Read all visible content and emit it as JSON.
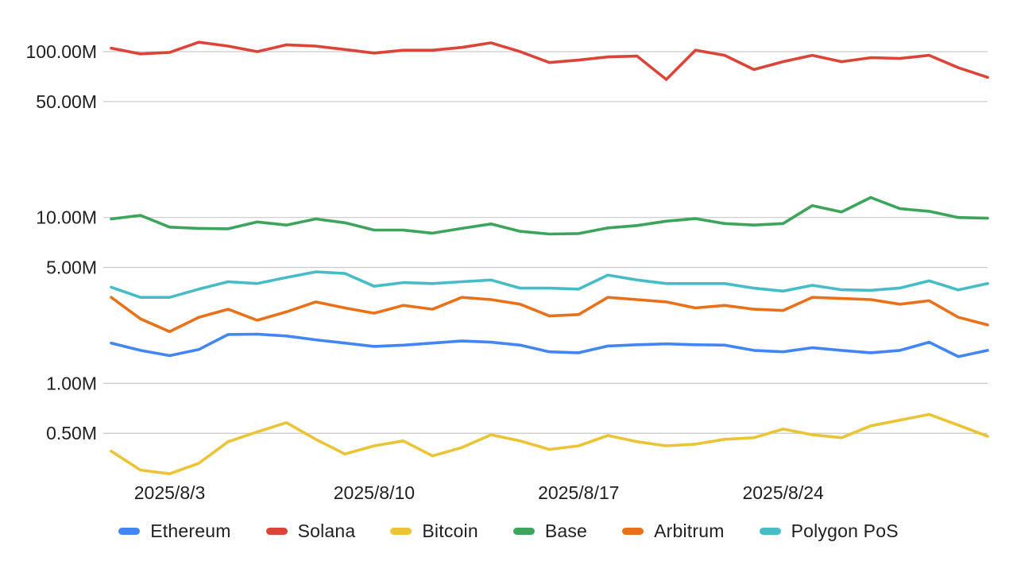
{
  "chart_data": {
    "type": "line",
    "title": "",
    "xlabel": "",
    "ylabel": "",
    "y_scale": "log",
    "y_unit": "M",
    "grid": "horizontal-only",
    "legend_position": "bottom",
    "ylim_m": [
      0.26,
      145
    ],
    "x": [
      "2025/8/1",
      "2025/8/2",
      "2025/8/3",
      "2025/8/4",
      "2025/8/5",
      "2025/8/6",
      "2025/8/7",
      "2025/8/8",
      "2025/8/9",
      "2025/8/10",
      "2025/8/11",
      "2025/8/12",
      "2025/8/13",
      "2025/8/14",
      "2025/8/15",
      "2025/8/16",
      "2025/8/17",
      "2025/8/18",
      "2025/8/19",
      "2025/8/20",
      "2025/8/21",
      "2025/8/22",
      "2025/8/23",
      "2025/8/24",
      "2025/8/25",
      "2025/8/26",
      "2025/8/27",
      "2025/8/28",
      "2025/8/29",
      "2025/8/30",
      "2025/8/31"
    ],
    "x_tick_indices": [
      2,
      9,
      16,
      23
    ],
    "x_tick_labels": [
      "2025/8/3",
      "2025/8/10",
      "2025/8/17",
      "2025/8/24"
    ],
    "y_ticks": [
      {
        "value": 100,
        "label": "100.00M"
      },
      {
        "value": 50,
        "label": "50.00M"
      },
      {
        "value": 10,
        "label": "10.00M"
      },
      {
        "value": 5,
        "label": "5.00M"
      },
      {
        "value": 1,
        "label": "1.00M"
      },
      {
        "value": 0.5,
        "label": "0.50M"
      }
    ],
    "series": [
      {
        "name": "Ethereum",
        "color": "#4285f4",
        "values": [
          1.75,
          1.58,
          1.47,
          1.6,
          1.97,
          1.98,
          1.93,
          1.83,
          1.75,
          1.67,
          1.7,
          1.75,
          1.8,
          1.77,
          1.7,
          1.55,
          1.53,
          1.68,
          1.71,
          1.73,
          1.71,
          1.7,
          1.58,
          1.55,
          1.64,
          1.58,
          1.53,
          1.58,
          1.77,
          1.45,
          1.58
        ]
      },
      {
        "name": "Solana",
        "color": "#db4437",
        "values": [
          105,
          97,
          99,
          114,
          108,
          100,
          110,
          108,
          103,
          98,
          102,
          102,
          106,
          113,
          100,
          86,
          89,
          93,
          94,
          68,
          102,
          95,
          78,
          87,
          95,
          87,
          92,
          91,
          95,
          80,
          70
        ]
      },
      {
        "name": "Bitcoin",
        "color": "#eac435",
        "values": [
          0.39,
          0.3,
          0.285,
          0.33,
          0.445,
          0.51,
          0.58,
          0.46,
          0.375,
          0.42,
          0.45,
          0.365,
          0.41,
          0.49,
          0.45,
          0.4,
          0.42,
          0.485,
          0.445,
          0.42,
          0.43,
          0.46,
          0.47,
          0.53,
          0.49,
          0.47,
          0.555,
          0.6,
          0.65,
          0.56,
          0.48
        ]
      },
      {
        "name": "Base",
        "color": "#3da45c",
        "values": [
          9.8,
          10.3,
          8.75,
          8.6,
          8.55,
          9.4,
          9.0,
          9.8,
          9.3,
          8.4,
          8.4,
          8.05,
          8.6,
          9.15,
          8.25,
          7.95,
          8.0,
          8.65,
          8.95,
          9.5,
          9.85,
          9.2,
          9.0,
          9.2,
          11.8,
          10.8,
          13.2,
          11.3,
          10.9,
          10.0,
          9.9
        ]
      },
      {
        "name": "Arbitrum",
        "color": "#e8711a",
        "values": [
          3.3,
          2.45,
          2.05,
          2.5,
          2.8,
          2.4,
          2.7,
          3.1,
          2.85,
          2.65,
          2.95,
          2.8,
          3.3,
          3.2,
          3.0,
          2.55,
          2.6,
          3.3,
          3.2,
          3.1,
          2.85,
          2.95,
          2.8,
          2.75,
          3.3,
          3.25,
          3.2,
          3.0,
          3.15,
          2.5,
          2.25
        ]
      },
      {
        "name": "Polygon PoS",
        "color": "#46bdc6",
        "values": [
          3.8,
          3.3,
          3.3,
          3.7,
          4.1,
          4.0,
          4.35,
          4.7,
          4.6,
          3.85,
          4.05,
          4.0,
          4.1,
          4.2,
          3.75,
          3.75,
          3.7,
          4.5,
          4.2,
          4.0,
          4.0,
          4.0,
          3.75,
          3.6,
          3.9,
          3.67,
          3.64,
          3.76,
          4.15,
          3.66,
          4.0
        ]
      }
    ]
  },
  "legend": {
    "items": [
      {
        "label": "Ethereum"
      },
      {
        "label": "Solana"
      },
      {
        "label": "Bitcoin"
      },
      {
        "label": "Base"
      },
      {
        "label": "Arbitrum"
      },
      {
        "label": "Polygon PoS"
      }
    ]
  }
}
